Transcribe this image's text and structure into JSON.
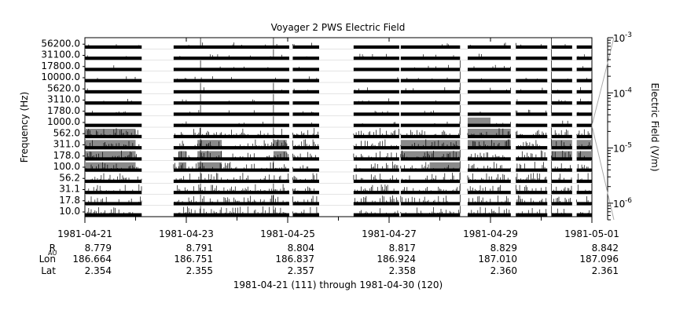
{
  "chart_data": {
    "type": "line",
    "title": "Voyager 2 PWS Electric Field",
    "ylabel": "Frequency (Hz)",
    "y2label": "Electric Field (V/m)",
    "xlabel": "1981-04-21 (111) through 1981-04-30 (120)",
    "channels": [
      "10.0",
      "17.8",
      "31.1",
      "56.2",
      "100.0",
      "178.0",
      "311.0",
      "562.0",
      "1000.0",
      "1780.0",
      "3110.0",
      "5620.0",
      "10000.0",
      "17800.0",
      "31100.0",
      "56200.0"
    ],
    "x_range_days": [
      0,
      10
    ],
    "date_ticks": [
      {
        "day": 0,
        "label": "1981-04-21"
      },
      {
        "day": 2,
        "label": "1981-04-23"
      },
      {
        "day": 4,
        "label": "1981-04-25"
      },
      {
        "day": 6,
        "label": "1981-04-27"
      },
      {
        "day": 8,
        "label": "1981-04-29"
      },
      {
        "day": 10,
        "label": "1981-05-01"
      }
    ],
    "minor_tick_days": [
      1,
      3,
      5,
      7,
      9
    ],
    "ephemeris": {
      "rows": [
        {
          "label": "R",
          "sub": "AU",
          "values": [
            "8.779",
            "8.791",
            "8.804",
            "8.817",
            "8.829",
            "8.842"
          ]
        },
        {
          "label": "Lon",
          "sub": "",
          "values": [
            "186.664",
            "186.751",
            "186.837",
            "186.924",
            "187.010",
            "187.096"
          ]
        },
        {
          "label": "Lat",
          "sub": "",
          "values": [
            "2.354",
            "2.355",
            "2.357",
            "2.358",
            "2.360",
            "2.361"
          ]
        }
      ]
    },
    "colorbar": {
      "scale": "log",
      "range": [
        5e-07,
        0.001
      ],
      "ticks": [
        {
          "mant": "10",
          "exp": "-3",
          "value": 0.001
        },
        {
          "mant": "10",
          "exp": "-4",
          "value": 0.0001
        },
        {
          "mant": "10",
          "exp": "-5",
          "value": 1e-05
        },
        {
          "mant": "10",
          "exp": "-6",
          "value": 1e-06
        }
      ]
    },
    "data_segments_days": [
      [
        0.0,
        1.12
      ],
      [
        1.75,
        4.03
      ],
      [
        4.1,
        4.62
      ],
      [
        5.3,
        6.2
      ],
      [
        6.23,
        7.4
      ],
      [
        7.55,
        8.4
      ],
      [
        8.5,
        9.12
      ],
      [
        9.2,
        9.61
      ],
      [
        9.7,
        10.0
      ]
    ],
    "event_days": [
      2.28,
      3.72,
      7.4,
      9.2
    ],
    "grey_blocks": [
      {
        "ch": [
          4,
          5,
          6,
          7
        ],
        "from": 0.0,
        "to": 1.0
      },
      {
        "ch": [
          4,
          5
        ],
        "from": 1.85,
        "to": 2.0
      },
      {
        "ch": [
          4,
          5,
          6
        ],
        "from": 2.22,
        "to": 2.7
      },
      {
        "ch": [
          5,
          6
        ],
        "from": 3.72,
        "to": 3.98
      },
      {
        "ch": [
          5,
          6
        ],
        "from": 6.23,
        "to": 7.4
      },
      {
        "ch": [
          4,
          5
        ],
        "from": 6.8,
        "to": 7.4
      },
      {
        "ch": [
          6,
          7
        ],
        "from": 7.55,
        "to": 8.4
      },
      {
        "ch": [
          8
        ],
        "from": 7.55,
        "to": 8.0
      },
      {
        "ch": [
          5,
          6
        ],
        "from": 9.2,
        "to": 9.61
      },
      {
        "ch": [
          5,
          6
        ],
        "from": 9.7,
        "to": 10.0
      }
    ]
  }
}
